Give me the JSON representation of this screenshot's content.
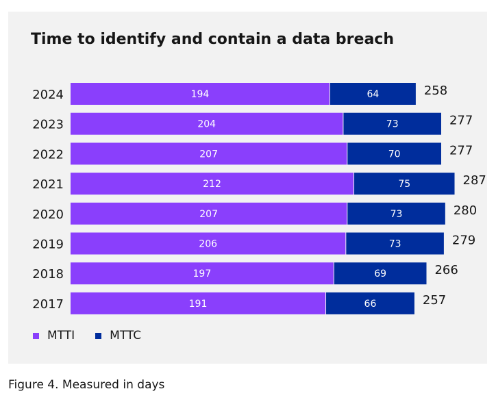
{
  "chart_data": {
    "type": "bar",
    "orientation": "horizontal",
    "stacked": true,
    "title": "Time to identify and contain a data breach",
    "categories": [
      "2024",
      "2023",
      "2022",
      "2021",
      "2020",
      "2019",
      "2018",
      "2017"
    ],
    "series": [
      {
        "name": "MTTI",
        "color": "#8a3ffc",
        "values": [
          194,
          204,
          207,
          212,
          207,
          206,
          197,
          191
        ]
      },
      {
        "name": "MTTC",
        "color": "#002d9c",
        "values": [
          64,
          73,
          70,
          75,
          73,
          73,
          69,
          66
        ]
      }
    ],
    "totals": [
      258,
      277,
      277,
      287,
      280,
      279,
      266,
      257
    ],
    "xlabel": "",
    "ylabel": "",
    "xlim": [
      0,
      300
    ],
    "grid": false,
    "legend": "bottom-left"
  },
  "caption": "Figure 4. Measured in days"
}
